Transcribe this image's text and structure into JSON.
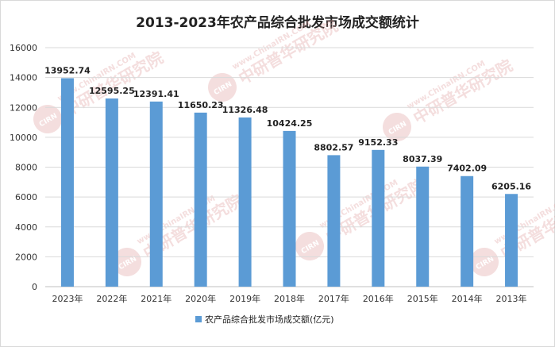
{
  "chart_data": {
    "type": "bar",
    "title": "2013-2023年农产品综合批发市场成交额统计",
    "categories": [
      "2023年",
      "2022年",
      "2021年",
      "2020年",
      "2019年",
      "2018年",
      "2017年",
      "2016年",
      "2015年",
      "2014年",
      "2013年"
    ],
    "series": [
      {
        "name": "农产品综合批发市场成交额(亿元)",
        "values": [
          13952.74,
          12595.25,
          12391.41,
          11650.23,
          11326.48,
          10424.25,
          8802.57,
          9152.33,
          8037.39,
          7402.09,
          6205.16
        ],
        "color": "#5b9bd5"
      }
    ],
    "value_labels": [
      "13952.74",
      "12595.25",
      "12391.41",
      "11650.23",
      "11326.48",
      "10424.25",
      "8802.57",
      "9152.33",
      "8037.39",
      "7402.09",
      "6205.16"
    ],
    "ylim": [
      0,
      16000
    ],
    "yticks": [
      0,
      2000,
      4000,
      6000,
      8000,
      10000,
      12000,
      14000,
      16000
    ],
    "ytick_labels": [
      "0",
      "2000",
      "4000",
      "6000",
      "8000",
      "10000",
      "12000",
      "14000",
      "16000"
    ],
    "grid": true,
    "legend_position": "bottom"
  },
  "watermark": {
    "logo_text": "CIRN",
    "site_text": "www.ChinaIRN.COM",
    "brand_text": "中研普华研究院",
    "color": "#e0a0a0"
  }
}
